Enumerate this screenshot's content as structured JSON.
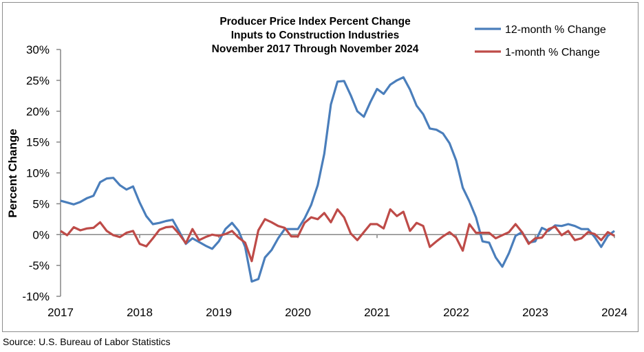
{
  "chart_data": {
    "type": "line",
    "title": [
      "Producer Price Index Percent Change",
      "Inputs to Construction Industries",
      "November 2017 Through November 2024"
    ],
    "xlabel": "",
    "ylabel": "Percent Change",
    "ylim": [
      -10,
      30
    ],
    "yticks": [
      -10,
      -5,
      0,
      5,
      10,
      15,
      20,
      25,
      30
    ],
    "ytick_labels": [
      "-10%",
      "-5%",
      "0%",
      "5%",
      "10%",
      "15%",
      "20%",
      "25%",
      "30%"
    ],
    "xtick_labels": [
      "2017",
      "2018",
      "2019",
      "2020",
      "2021",
      "2022",
      "2023",
      "2024"
    ],
    "grid": false,
    "legend": "top-right",
    "series": [
      {
        "name": "12-month % Change",
        "color": "#4a7ebb",
        "values": [
          5.5,
          5.2,
          4.9,
          5.3,
          5.9,
          6.3,
          8.5,
          9.1,
          9.2,
          8.0,
          7.3,
          7.8,
          5.2,
          3.0,
          1.7,
          1.9,
          2.2,
          2.4,
          0.5,
          -1.5,
          -0.6,
          -1.2,
          -1.8,
          -2.3,
          -1.1,
          0.9,
          1.9,
          0.6,
          -2.0,
          -7.6,
          -7.2,
          -3.7,
          -2.5,
          -0.6,
          0.9,
          0.9,
          0.9,
          2.6,
          4.8,
          8.0,
          13.1,
          21.1,
          24.8,
          24.9,
          22.6,
          20.0,
          19.1,
          21.5,
          23.6,
          22.8,
          24.3,
          25.0,
          25.5,
          23.5,
          20.9,
          19.5,
          17.2,
          17.0,
          16.4,
          14.8,
          12.0,
          7.6,
          5.4,
          2.8,
          -1.1,
          -1.3,
          -3.7,
          -5.2,
          -3.0,
          -0.2,
          0.4,
          -1.3,
          -1.1,
          1.1,
          0.6,
          1.5,
          1.4,
          1.7,
          1.4,
          0.9,
          0.9,
          -0.4,
          -2.0,
          -0.2,
          0.6
        ]
      },
      {
        "name": "1-month % Change",
        "color": "#be4b48",
        "values": [
          0.6,
          -0.1,
          1.2,
          0.7,
          1.0,
          1.1,
          2.0,
          0.6,
          -0.1,
          -0.4,
          0.3,
          0.6,
          -1.5,
          -1.9,
          -0.6,
          0.8,
          1.2,
          1.3,
          0.1,
          -1.4,
          0.9,
          -0.9,
          -0.4,
          0.0,
          -0.2,
          0.1,
          0.6,
          -0.5,
          -1.3,
          -4.3,
          0.7,
          2.5,
          2.0,
          1.4,
          1.1,
          -0.3,
          -0.3,
          1.9,
          2.8,
          2.5,
          3.5,
          2.0,
          4.1,
          2.8,
          0.2,
          -0.9,
          0.4,
          1.7,
          1.7,
          1.0,
          4.1,
          3.0,
          3.7,
          0.6,
          1.9,
          1.4,
          -2.0,
          -1.1,
          -0.3,
          0.4,
          -0.5,
          -2.6,
          1.7,
          0.3,
          0.3,
          0.3,
          -0.6,
          -0.1,
          0.4,
          1.7,
          0.4,
          -1.5,
          -0.6,
          -0.5,
          0.9,
          1.3,
          -0.1,
          0.6,
          -0.9,
          -0.6,
          0.4,
          0.1,
          -0.9,
          0.4,
          -0.2
        ]
      }
    ]
  },
  "source": "Source: U.S. Bureau of Labor Statistics"
}
